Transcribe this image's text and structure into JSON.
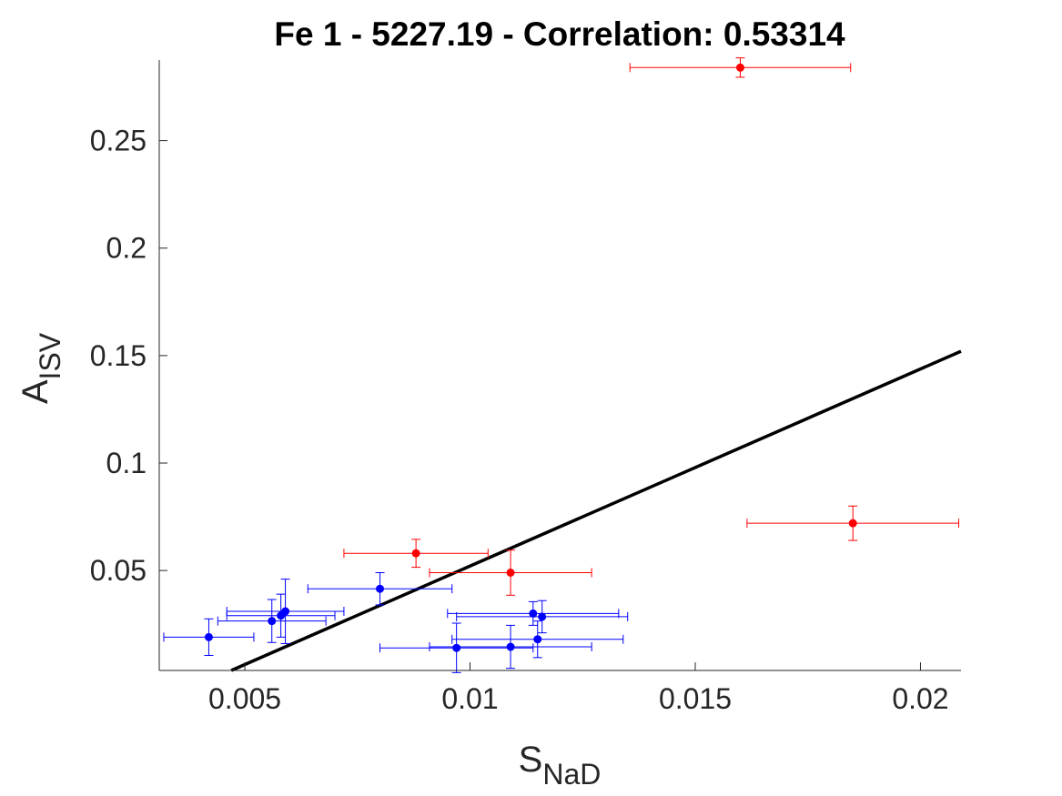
{
  "chart_data": {
    "type": "scatter",
    "title": "Fe 1 - 5227.19 - Correlation: 0.53314",
    "xlabel": {
      "main": "S",
      "sub": "NaD"
    },
    "ylabel": {
      "main": "A",
      "sub": "ISV"
    },
    "xlim": [
      0.0031,
      0.0209
    ],
    "ylim": [
      0.0035,
      0.2875
    ],
    "xticks": [
      0.005,
      0.01,
      0.015,
      0.02
    ],
    "xtick_labels": [
      "0.005",
      "0.01",
      "0.015",
      "0.02"
    ],
    "yticks": [
      0.05,
      0.1,
      0.15,
      0.2,
      0.25
    ],
    "ytick_labels": [
      "0.05",
      "0.1",
      "0.15",
      "0.2",
      "0.25"
    ],
    "grid": false,
    "colors": {
      "outliers": "#ff0000",
      "points": "#0000ff",
      "fit_line": "#000000",
      "axes": "#262626"
    },
    "series": [
      {
        "color_key": "outliers",
        "points": [
          {
            "x": 0.016,
            "y": 0.284,
            "xerr": 0.00245,
            "yerr": 0.0045
          },
          {
            "x": 0.0185,
            "y": 0.072,
            "xerr": 0.00235,
            "yerr": 0.008
          },
          {
            "x": 0.0088,
            "y": 0.058,
            "xerr": 0.0016,
            "yerr": 0.0065
          },
          {
            "x": 0.0109,
            "y": 0.049,
            "xerr": 0.0018,
            "yerr": 0.0105
          }
        ]
      },
      {
        "color_key": "points",
        "points": [
          {
            "x": 0.0042,
            "y": 0.019,
            "xerr": 0.001,
            "yerr": 0.0085
          },
          {
            "x": 0.0056,
            "y": 0.0265,
            "xerr": 0.0012,
            "yerr": 0.01
          },
          {
            "x": 0.0058,
            "y": 0.029,
            "xerr": 0.0012,
            "yerr": 0.01
          },
          {
            "x": 0.0059,
            "y": 0.031,
            "xerr": 0.0013,
            "yerr": 0.015
          },
          {
            "x": 0.008,
            "y": 0.0415,
            "xerr": 0.0016,
            "yerr": 0.0075
          },
          {
            "x": 0.0097,
            "y": 0.014,
            "xerr": 0.0017,
            "yerr": 0.0115
          },
          {
            "x": 0.0109,
            "y": 0.0145,
            "xerr": 0.0018,
            "yerr": 0.01
          },
          {
            "x": 0.0114,
            "y": 0.03,
            "xerr": 0.0019,
            "yerr": 0.0055
          },
          {
            "x": 0.0115,
            "y": 0.018,
            "xerr": 0.0019,
            "yerr": 0.0085
          },
          {
            "x": 0.0116,
            "y": 0.0285,
            "xerr": 0.0019,
            "yerr": 0.0075
          }
        ]
      }
    ],
    "fit_line": {
      "x": [
        0.0047,
        0.0209
      ],
      "y": [
        0.0035,
        0.152
      ]
    }
  }
}
